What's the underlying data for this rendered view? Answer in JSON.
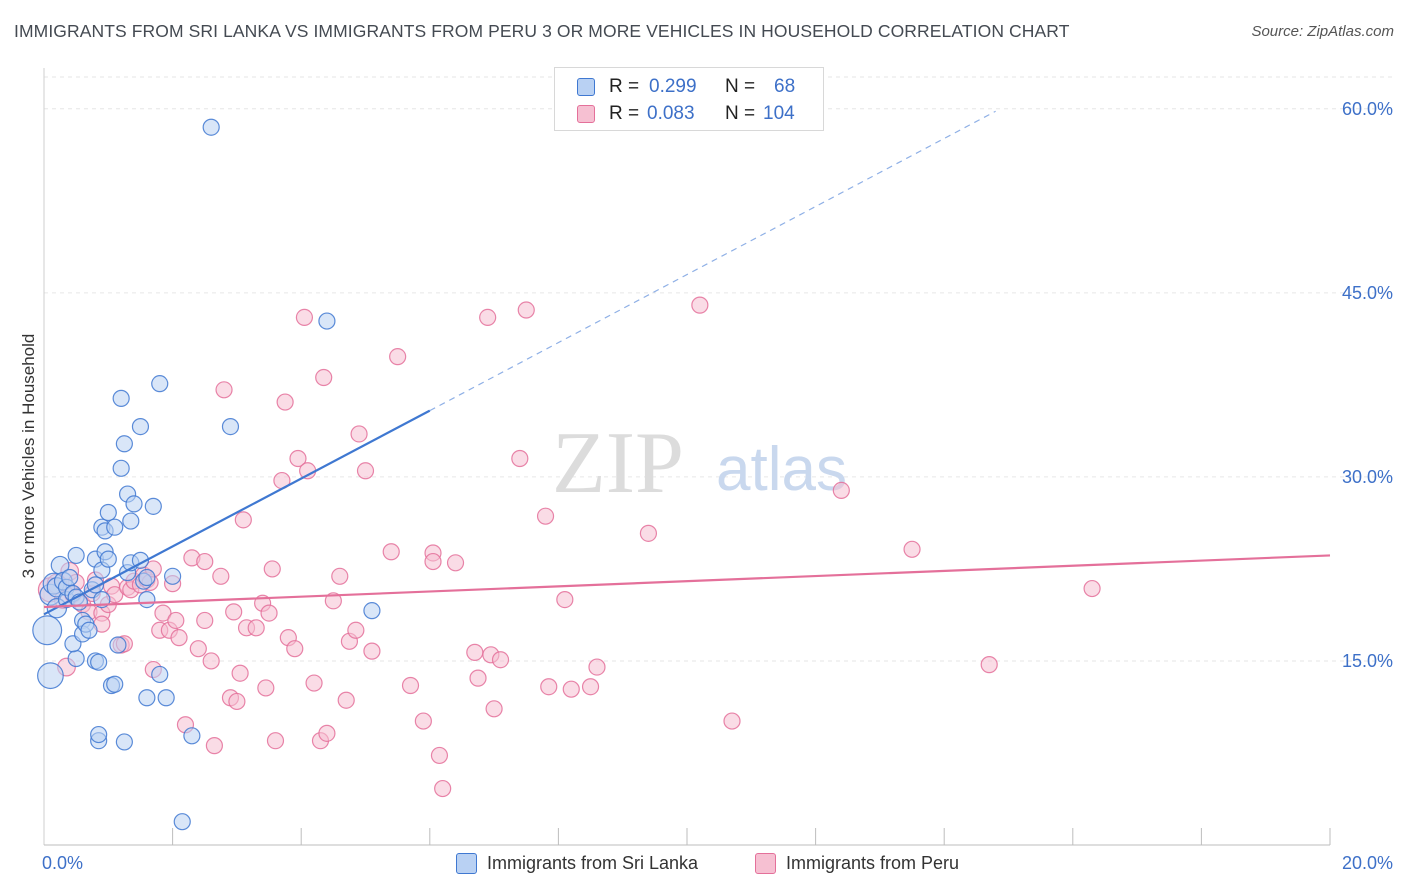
{
  "title": "IMMIGRANTS FROM SRI LANKA VS IMMIGRANTS FROM PERU 3 OR MORE VEHICLES IN HOUSEHOLD CORRELATION CHART",
  "source": "Source: ZipAtlas.com",
  "watermark": {
    "zip": "ZIP",
    "atlas": "atlas"
  },
  "legend": {
    "r_label": "R =",
    "n_label": "N =",
    "sri_lanka": {
      "r": "0.299",
      "n": "68"
    },
    "peru": {
      "r": "0.083",
      "n": "104"
    }
  },
  "colors": {
    "blue": "#3f78d1",
    "blue_fill": "#b9d1f3",
    "pink": "#e4709a",
    "pink_fill": "#f6c0d2",
    "axis_label": "#3d70c8",
    "grid": "#e6e6e6"
  },
  "chart_data": {
    "type": "scatter",
    "title": "IMMIGRANTS FROM SRI LANKA VS IMMIGRANTS FROM PERU 3 OR MORE VEHICLES IN HOUSEHOLD CORRELATION CHART",
    "xlabel": "",
    "ylabel": "3 or more Vehicles in Household",
    "xlim": [
      0,
      20
    ],
    "ylim": [
      0,
      63
    ],
    "x_tick_labels": [
      {
        "value": 0,
        "label": "0.0%"
      },
      {
        "value": 20,
        "label": "20.0%"
      }
    ],
    "x_minor_ticks": [
      2,
      4,
      6,
      8,
      10,
      12,
      14,
      16,
      18,
      20
    ],
    "y_ticks": [
      {
        "value": 15,
        "label": "15.0%"
      },
      {
        "value": 30,
        "label": "30.0%"
      },
      {
        "value": 45,
        "label": "45.0%"
      },
      {
        "value": 60,
        "label": "60.0%"
      }
    ],
    "series": [
      {
        "name": "Immigrants from Sri Lanka",
        "color": "#3f78d1",
        "r": 0.299,
        "n": 68,
        "trend": {
          "x0": 0,
          "y0": 18.8,
          "x1": 6.0,
          "y1": 35.4,
          "dash_x1": 14.8,
          "dash_y1": 59.8
        },
        "points": [
          [
            0.05,
            17.5,
            1.8
          ],
          [
            0.1,
            13.8,
            1.6
          ],
          [
            0.1,
            20.4,
            1.3
          ],
          [
            0.15,
            21.3,
            1.3
          ],
          [
            0.2,
            19.3,
            1.2
          ],
          [
            0.2,
            21.0,
            1.2
          ],
          [
            0.25,
            22.8,
            1.1
          ],
          [
            0.3,
            21.5,
            1.1
          ],
          [
            0.35,
            20.0,
            1.0
          ],
          [
            0.35,
            21.0,
            1.0
          ],
          [
            0.4,
            21.8,
            1.0
          ],
          [
            0.45,
            20.5,
            1.0
          ],
          [
            0.5,
            20.2,
            1.0
          ],
          [
            0.5,
            15.2,
            1.0
          ],
          [
            0.45,
            16.4,
            1.0
          ],
          [
            0.55,
            19.8,
            1.0
          ],
          [
            0.5,
            23.6,
            1.0
          ],
          [
            0.6,
            18.3,
            1.0
          ],
          [
            0.6,
            17.2,
            1.0
          ],
          [
            0.65,
            18.0,
            1.0
          ],
          [
            0.7,
            17.5,
            1.0
          ],
          [
            0.75,
            20.8,
            1.0
          ],
          [
            0.8,
            23.3,
            1.0
          ],
          [
            0.8,
            15.0,
            1.0
          ],
          [
            0.85,
            14.9,
            1.0
          ],
          [
            0.8,
            21.2,
            1.0
          ],
          [
            0.9,
            22.4,
            1.0
          ],
          [
            0.85,
            8.5,
            1.0
          ],
          [
            0.85,
            9.0,
            1.0
          ],
          [
            0.9,
            20.0,
            1.0
          ],
          [
            0.9,
            25.9,
            1.0
          ],
          [
            0.95,
            23.9,
            1.0
          ],
          [
            0.95,
            25.6,
            1.0
          ],
          [
            1.0,
            27.1,
            1.0
          ],
          [
            1.0,
            23.3,
            1.0
          ],
          [
            1.05,
            13.0,
            1.0
          ],
          [
            1.1,
            13.1,
            1.0
          ],
          [
            1.1,
            25.9,
            1.0
          ],
          [
            1.15,
            16.3,
            1.0
          ],
          [
            1.2,
            36.4,
            1.0
          ],
          [
            1.2,
            30.7,
            1.0
          ],
          [
            1.25,
            32.7,
            1.0
          ],
          [
            1.25,
            8.4,
            1.0
          ],
          [
            1.3,
            28.6,
            1.0
          ],
          [
            1.3,
            22.2,
            1.0
          ],
          [
            1.35,
            26.4,
            1.0
          ],
          [
            1.35,
            23.0,
            1.0
          ],
          [
            1.4,
            27.8,
            1.0
          ],
          [
            1.5,
            34.1,
            1.0
          ],
          [
            1.5,
            23.2,
            1.0
          ],
          [
            1.55,
            21.5,
            1.0
          ],
          [
            1.6,
            21.8,
            1.0
          ],
          [
            1.6,
            20.0,
            1.0
          ],
          [
            1.6,
            12.0,
            1.0
          ],
          [
            1.7,
            27.6,
            1.0
          ],
          [
            1.8,
            13.9,
            1.0
          ],
          [
            1.8,
            37.6,
            1.0
          ],
          [
            1.9,
            12.0,
            1.0
          ],
          [
            2.0,
            21.9,
            1.0
          ],
          [
            2.15,
            1.9,
            1.0
          ],
          [
            2.3,
            8.9,
            1.0
          ],
          [
            2.6,
            58.5,
            1.0
          ],
          [
            2.9,
            34.1,
            1.0
          ],
          [
            4.4,
            42.7,
            1.0
          ],
          [
            5.1,
            19.1,
            1.0
          ]
        ]
      },
      {
        "name": "Immigrants from Peru",
        "color": "#e4709a",
        "r": 0.083,
        "n": 104,
        "trend": {
          "x0": 0,
          "y0": 19.4,
          "x1": 20,
          "y1": 23.6
        },
        "points": [
          [
            0.1,
            20.8,
            1.5
          ],
          [
            0.2,
            21.3,
            1.2
          ],
          [
            0.3,
            20.0,
            1.1
          ],
          [
            0.35,
            14.5,
            1.1
          ],
          [
            0.4,
            22.3,
            1.1
          ],
          [
            0.45,
            20.4,
            1.0
          ],
          [
            0.5,
            21.4,
            1.0
          ],
          [
            0.6,
            19.6,
            1.0
          ],
          [
            0.7,
            19.0,
            1.0
          ],
          [
            0.75,
            20.5,
            1.0
          ],
          [
            0.8,
            21.6,
            1.0
          ],
          [
            0.9,
            18.9,
            1.0
          ],
          [
            0.9,
            18.0,
            1.0
          ],
          [
            1.0,
            19.6,
            1.0
          ],
          [
            1.05,
            21.1,
            1.0
          ],
          [
            1.1,
            20.4,
            1.0
          ],
          [
            1.2,
            16.3,
            1.0
          ],
          [
            1.25,
            16.4,
            1.0
          ],
          [
            1.3,
            21.0,
            1.0
          ],
          [
            1.35,
            20.8,
            1.0
          ],
          [
            1.4,
            21.5,
            1.0
          ],
          [
            1.5,
            21.2,
            1.0
          ],
          [
            1.55,
            22.0,
            1.0
          ],
          [
            1.6,
            21.6,
            1.0
          ],
          [
            1.65,
            21.4,
            1.0
          ],
          [
            1.7,
            22.5,
            1.0
          ],
          [
            1.7,
            14.3,
            1.0
          ],
          [
            1.8,
            17.5,
            1.0
          ],
          [
            1.85,
            18.9,
            1.0
          ],
          [
            1.95,
            17.5,
            1.0
          ],
          [
            2.0,
            21.3,
            1.0
          ],
          [
            2.05,
            18.3,
            1.0
          ],
          [
            2.1,
            16.9,
            1.0
          ],
          [
            2.2,
            9.8,
            1.0
          ],
          [
            2.3,
            23.4,
            1.0
          ],
          [
            2.4,
            16.0,
            1.0
          ],
          [
            2.5,
            18.3,
            1.0
          ],
          [
            2.5,
            23.1,
            1.0
          ],
          [
            2.6,
            15.0,
            1.0
          ],
          [
            2.65,
            8.1,
            1.0
          ],
          [
            2.75,
            21.9,
            1.0
          ],
          [
            2.8,
            37.1,
            1.0
          ],
          [
            2.9,
            12.0,
            1.0
          ],
          [
            2.95,
            19.0,
            1.0
          ],
          [
            3.0,
            11.7,
            1.0
          ],
          [
            3.05,
            14.0,
            1.0
          ],
          [
            3.1,
            26.5,
            1.0
          ],
          [
            3.15,
            17.7,
            1.0
          ],
          [
            3.3,
            17.7,
            1.0
          ],
          [
            3.4,
            19.7,
            1.0
          ],
          [
            3.45,
            12.8,
            1.0
          ],
          [
            3.5,
            18.9,
            1.0
          ],
          [
            3.55,
            22.5,
            1.0
          ],
          [
            3.6,
            8.5,
            1.0
          ],
          [
            3.7,
            29.7,
            1.0
          ],
          [
            3.75,
            36.1,
            1.0
          ],
          [
            3.8,
            16.9,
            1.0
          ],
          [
            3.9,
            16.0,
            1.0
          ],
          [
            3.95,
            31.5,
            1.0
          ],
          [
            4.05,
            43.0,
            1.0
          ],
          [
            4.1,
            30.5,
            1.0
          ],
          [
            4.2,
            13.2,
            1.0
          ],
          [
            4.3,
            8.5,
            1.0
          ],
          [
            4.35,
            38.1,
            1.0
          ],
          [
            4.4,
            9.1,
            1.0
          ],
          [
            4.5,
            19.9,
            1.0
          ],
          [
            4.6,
            21.9,
            1.0
          ],
          [
            4.7,
            11.8,
            1.0
          ],
          [
            4.75,
            16.6,
            1.0
          ],
          [
            4.85,
            17.5,
            1.0
          ],
          [
            4.9,
            33.5,
            1.0
          ],
          [
            5.0,
            30.5,
            1.0
          ],
          [
            5.1,
            15.8,
            1.0
          ],
          [
            5.4,
            23.9,
            1.0
          ],
          [
            5.5,
            39.8,
            1.0
          ],
          [
            5.7,
            13.0,
            1.0
          ],
          [
            5.9,
            10.1,
            1.0
          ],
          [
            6.05,
            23.8,
            1.0
          ],
          [
            6.05,
            23.1,
            1.0
          ],
          [
            6.4,
            23.0,
            1.0
          ],
          [
            6.15,
            7.3,
            1.0
          ],
          [
            6.2,
            4.6,
            1.0
          ],
          [
            6.7,
            15.7,
            1.0
          ],
          [
            6.75,
            13.6,
            1.0
          ],
          [
            6.9,
            43.0,
            1.0
          ],
          [
            6.95,
            15.5,
            1.0
          ],
          [
            7.0,
            11.1,
            1.0
          ],
          [
            7.1,
            15.1,
            1.0
          ],
          [
            7.4,
            31.5,
            1.0
          ],
          [
            7.5,
            43.6,
            1.0
          ],
          [
            7.8,
            26.8,
            1.0
          ],
          [
            7.85,
            12.9,
            1.0
          ],
          [
            8.1,
            20.0,
            1.0
          ],
          [
            8.2,
            12.7,
            1.0
          ],
          [
            8.5,
            12.9,
            1.0
          ],
          [
            8.6,
            14.5,
            1.0
          ],
          [
            9.4,
            25.4,
            1.0
          ],
          [
            10.2,
            44.0,
            1.0
          ],
          [
            10.7,
            10.1,
            1.0
          ],
          [
            12.4,
            28.9,
            1.0
          ],
          [
            13.5,
            24.1,
            1.0
          ],
          [
            14.7,
            14.7,
            1.0
          ],
          [
            16.3,
            20.9,
            1.0
          ]
        ]
      }
    ]
  }
}
